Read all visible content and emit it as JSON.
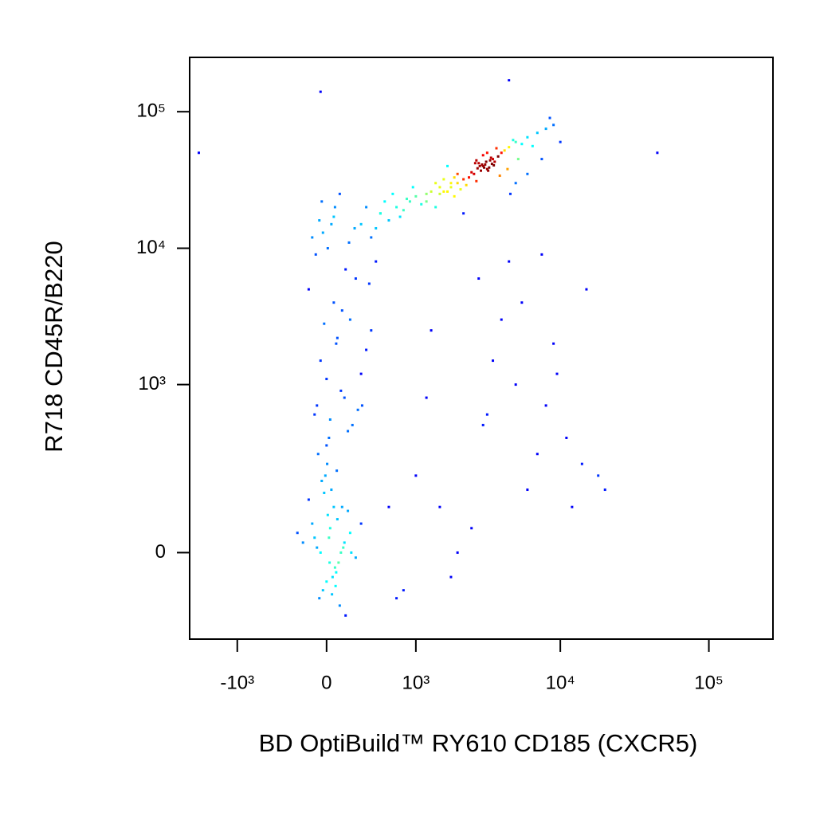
{
  "chart_data": {
    "type": "scatter",
    "xlabel": "BD OptiBuild™ RY610 CD185 (CXCR5)",
    "ylabel": "R718 CD45R/B220",
    "xscale": "biexponential",
    "yscale": "biexponential",
    "color_map": "jet",
    "xlim": [
      -2200,
      270000
    ],
    "ylim": [
      -240,
      250000
    ],
    "xticks": [
      {
        "value": -1000,
        "label": "-10³"
      },
      0,
      {
        "value": 1000,
        "label": "10³"
      },
      {
        "value": 10000,
        "label": "10⁴"
      },
      {
        "value": 100000,
        "label": "10⁵"
      }
    ],
    "yticks": [
      0,
      {
        "value": 1000,
        "label": "10³"
      },
      {
        "value": 10000,
        "label": "10⁴"
      },
      {
        "value": 100000,
        "label": "10⁵"
      }
    ],
    "x": [
      -50,
      20,
      80,
      -120,
      150,
      0,
      60,
      -80,
      100,
      30,
      10,
      -30,
      120,
      200,
      -150,
      70,
      40,
      -60,
      90,
      140,
      -10,
      50,
      180,
      -100,
      250,
      -200,
      110,
      5,
      -40,
      75,
      300,
      -250,
      160,
      25,
      -70,
      130,
      45,
      -20,
      210,
      85,
      20,
      -100,
      150,
      300,
      -50,
      80,
      400,
      0,
      200,
      -150,
      120,
      60,
      -80,
      250,
      350,
      10,
      180,
      -30,
      90,
      450,
      40,
      -120,
      220,
      130,
      -60,
      310,
      70,
      0,
      160,
      500,
      -90,
      240,
      30,
      110,
      380,
      -20,
      190,
      60,
      270,
      -40,
      300,
      500,
      700,
      900,
      1200,
      1500,
      1800,
      400,
      600,
      800,
      1000,
      1300,
      1600,
      2000,
      350,
      550,
      750,
      950,
      1100,
      1400,
      1700,
      450,
      650,
      850,
      1900,
      3000,
      2800,
      3200,
      3500,
      2500,
      2700,
      3100,
      3300,
      2900,
      3600,
      4000,
      2200,
      2000,
      4500,
      5000,
      1800,
      3800,
      2600,
      3400,
      3000,
      6000,
      1500,
      7000,
      1200,
      2400,
      4200,
      3700,
      5500,
      2100,
      3900,
      8000,
      2300,
      4800,
      1600,
      6500,
      2700,
      3200,
      5200,
      1900,
      4400,
      2950,
      3050,
      3150,
      2850,
      3250,
      2650,
      3350,
      2750,
      3450,
      3550,
      9000,
      1400,
      7500,
      6000,
      2200,
      10000,
      5000,
      1700,
      4600,
      8500,
      1000,
      1500,
      2000,
      3000,
      4000,
      5000,
      7000,
      9000,
      12000,
      15000,
      1200,
      2500,
      3500,
      6000,
      8000,
      11000,
      20000,
      1800,
      2800,
      4500,
      600,
      800,
      1300,
      5500,
      9500,
      14000,
      3200,
      7500,
      18000,
      700,
      -1900,
      45000,
      -50,
      4500
    ],
    "y": [
      0,
      30,
      -40,
      60,
      20,
      -60,
      100,
      10,
      -20,
      50,
      80,
      -80,
      0,
      40,
      120,
      -30,
      150,
      -100,
      70,
      10,
      200,
      -50,
      90,
      30,
      -10,
      20,
      -120,
      250,
      180,
      -70,
      60,
      40,
      -150,
      -20,
      300,
      100,
      -90,
      140,
      0,
      220,
      400,
      600,
      800,
      1200,
      1500,
      2000,
      2500,
      350,
      3000,
      5000,
      900,
      4000,
      700,
      6000,
      1800,
      10000,
      450,
      13000,
      2200,
      8000,
      15000,
      12000,
      500,
      3500,
      16000,
      700,
      20000,
      1100,
      7000,
      18000,
      9000,
      14000,
      550,
      25000,
      5500,
      2800,
      11000,
      17000,
      650,
      22000,
      15000,
      18000,
      20000,
      22000,
      25000,
      28000,
      30000,
      12000,
      16000,
      19000,
      24000,
      26000,
      32000,
      35000,
      20000,
      22000,
      17000,
      28000,
      21000,
      30000,
      26000,
      14000,
      25000,
      23000,
      33000,
      40000,
      42000,
      38000,
      45000,
      36000,
      44000,
      41000,
      39000,
      37000,
      43000,
      50000,
      32000,
      30000,
      55000,
      60000,
      28000,
      47000,
      35000,
      46000,
      48000,
      65000,
      25000,
      70000,
      22000,
      33000,
      52000,
      54000,
      58000,
      27000,
      34000,
      75000,
      29000,
      62000,
      26000,
      56000,
      31000,
      50000,
      45000,
      24000,
      38000,
      41000,
      39000,
      43000,
      40000,
      37000,
      42000,
      44000,
      38500,
      41500,
      40500,
      80000,
      20000,
      45000,
      35000,
      18000,
      60000,
      30000,
      40000,
      25000,
      90000,
      200,
      100,
      0,
      500,
      3000,
      1000,
      300,
      2000,
      100,
      5000,
      800,
      50,
      1500,
      150,
      700,
      400,
      150,
      -50,
      6000,
      8000,
      100,
      -80,
      2500,
      4000,
      1200,
      250,
      600,
      9000,
      200,
      -100,
      50000,
      50000,
      140000,
      170000
    ]
  }
}
